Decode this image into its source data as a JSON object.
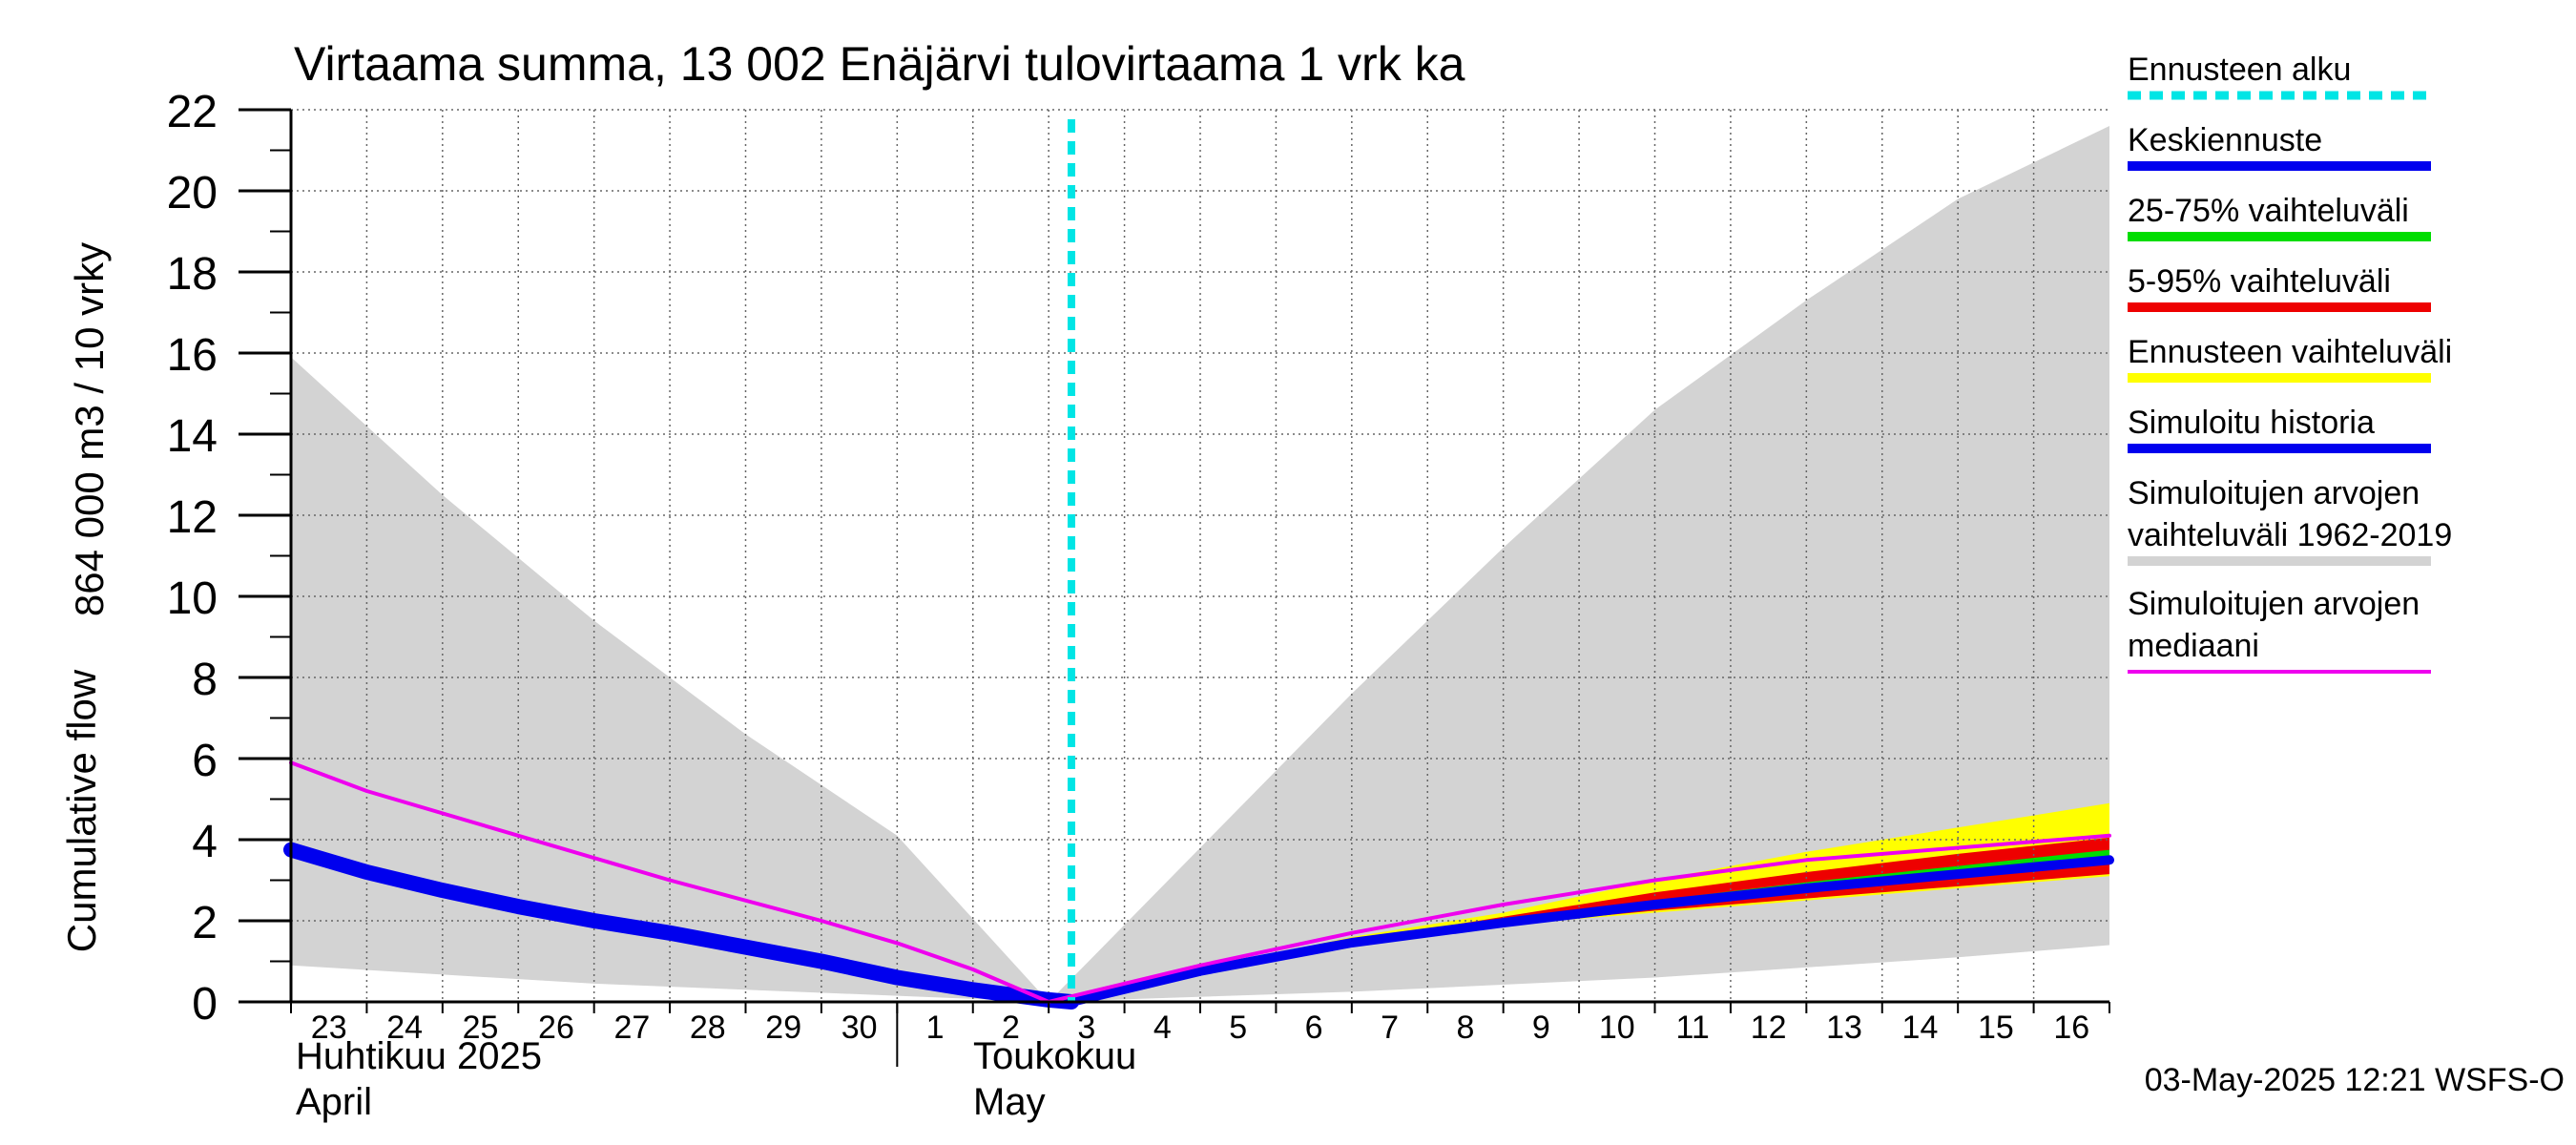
{
  "chart_data": {
    "type": "area",
    "title": "Virtaama summa, 13 002 Enäjärvi tulovirtaama 1 vrk ka",
    "ylabel_1": "864 000 m3 / 10 vrky",
    "ylabel_2": "Cumulative flow",
    "ylim": [
      0,
      22
    ],
    "y_ticks": [
      0,
      2,
      4,
      6,
      8,
      10,
      12,
      14,
      16,
      18,
      20,
      22
    ],
    "y_tick_labels": [
      "0",
      "2",
      "4",
      "6",
      "8",
      "10",
      "12",
      "14",
      "16",
      "18",
      "20",
      "22"
    ],
    "x_start_day": 0,
    "x_end_day": 24,
    "x_day_labels": [
      "23",
      "24",
      "25",
      "26",
      "27",
      "28",
      "29",
      "30",
      "1",
      "2",
      "3",
      "4",
      "5",
      "6",
      "7",
      "8",
      "9",
      "10",
      "11",
      "12",
      "13",
      "14",
      "15",
      "16"
    ],
    "month_labels": [
      {
        "fi": "Huhtikuu  2025",
        "en": "April",
        "day": 0
      },
      {
        "fi": "Toukokuu",
        "en": "May",
        "day": 9.2
      }
    ],
    "month_divider_day": 8.0,
    "forecast_start_day": 10.3,
    "min_day": 10.0,
    "timestamp": "03-May-2025 12:21 WSFS-O",
    "legend": [
      {
        "label": "Ennusteen alku",
        "color": "#00e5e5",
        "style": "dashed"
      },
      {
        "label": "Keskiennuste",
        "color": "#0000ee",
        "style": "solid"
      },
      {
        "label": "25-75% vaihteluväli",
        "color": "#00dd00",
        "style": "solid"
      },
      {
        "label": "5-95% vaihteluväli",
        "color": "#ee0000",
        "style": "solid"
      },
      {
        "label": "Ennusteen vaihteluväli",
        "color": "#ffff00",
        "style": "solid"
      },
      {
        "label": "Simuloitu historia",
        "color": "#0000ee",
        "style": "solid"
      },
      {
        "label": "Simuloitujen arvojen vaihteluväli 1962-2019",
        "label_line1": "Simuloitujen arvojen",
        "label_line2": "vaihteluväli 1962-2019",
        "color": "#d3d3d3",
        "style": "solid"
      },
      {
        "label": "Simuloitujen arvojen mediaani",
        "label_line1": "Simuloitujen arvojen",
        "label_line2": "mediaani",
        "color": "#ee00ee",
        "style": "solid"
      }
    ],
    "series": {
      "hist_range_upper": {
        "name": "Simuloitujen arvojen vaihteluväli 1962-2019 (upper)",
        "x": [
          0,
          2,
          4,
          6,
          8,
          10,
          12,
          14,
          16,
          18,
          20,
          22,
          24
        ],
        "y": [
          15.9,
          12.5,
          9.4,
          6.6,
          4.1,
          0,
          3.8,
          7.6,
          11.2,
          14.6,
          17.3,
          19.8,
          21.6
        ]
      },
      "hist_range_lower": {
        "name": "Simuloitujen arvojen vaihteluväli 1962-2019 (lower)",
        "x": [
          0,
          4,
          8,
          10,
          14,
          18,
          22,
          24
        ],
        "y": [
          0.9,
          0.45,
          0.15,
          0,
          0.25,
          0.6,
          1.1,
          1.4
        ]
      },
      "hist_median": {
        "name": "Simuloitujen arvojen mediaani",
        "x": [
          0,
          1,
          3,
          5,
          7,
          8,
          9,
          10,
          12,
          14,
          16,
          18,
          20,
          22,
          24
        ],
        "y": [
          5.9,
          5.2,
          4.1,
          3.0,
          2.0,
          1.45,
          0.8,
          0,
          0.9,
          1.7,
          2.4,
          3.0,
          3.5,
          3.8,
          4.1
        ]
      },
      "simulated_history": {
        "name": "Simuloitu historia",
        "x": [
          0,
          1,
          2,
          3,
          4,
          5,
          6,
          7,
          8,
          9,
          10,
          10.3
        ],
        "y": [
          3.75,
          3.2,
          2.75,
          2.35,
          2.0,
          1.7,
          1.35,
          1.0,
          0.6,
          0.3,
          0.05,
          0
        ]
      },
      "forecast_range_upper": {
        "name": "Ennusteen vaihteluväli (upper)",
        "x": [
          10.3,
          12,
          14,
          16,
          18,
          20,
          22,
          24
        ],
        "y": [
          0,
          0.8,
          1.6,
          2.2,
          3.0,
          3.7,
          4.3,
          4.9
        ]
      },
      "forecast_range_lower": {
        "name": "Ennusteen vaihteluväli (lower)",
        "x": [
          10.3,
          12,
          14,
          16,
          18,
          20,
          22,
          24
        ],
        "y": [
          0,
          0.75,
          1.45,
          1.9,
          2.2,
          2.5,
          2.8,
          3.1
        ]
      },
      "p5_95_upper": {
        "name": "5-95% vaihteluväli (upper)",
        "x": [
          10.3,
          12,
          14,
          16,
          18,
          20,
          22,
          24
        ],
        "y": [
          0,
          0.78,
          1.5,
          2.1,
          2.7,
          3.2,
          3.65,
          4.05
        ]
      },
      "p5_95_lower": {
        "name": "5-95% vaihteluväli (lower)",
        "x": [
          10.3,
          12,
          14,
          16,
          18,
          20,
          22,
          24
        ],
        "y": [
          0,
          0.75,
          1.45,
          1.9,
          2.25,
          2.55,
          2.85,
          3.15
        ]
      },
      "p25_75_upper": {
        "name": "25-75% vaihteluväli (upper)",
        "x": [
          10.3,
          12,
          14,
          16,
          18,
          20,
          22,
          24
        ],
        "y": [
          0,
          0.77,
          1.48,
          2.0,
          2.5,
          2.95,
          3.35,
          3.75
        ]
      },
      "p25_75_lower": {
        "name": "25-75% vaihteluväli (lower)",
        "x": [
          10.3,
          12,
          14,
          16,
          18,
          20,
          22,
          24
        ],
        "y": [
          0,
          0.75,
          1.45,
          1.95,
          2.35,
          2.75,
          3.05,
          3.4
        ]
      },
      "mean_forecast": {
        "name": "Keskiennuste",
        "x": [
          10.3,
          12,
          14,
          16,
          18,
          20,
          22,
          24
        ],
        "y": [
          0,
          0.76,
          1.46,
          1.95,
          2.4,
          2.8,
          3.15,
          3.5
        ]
      }
    }
  }
}
